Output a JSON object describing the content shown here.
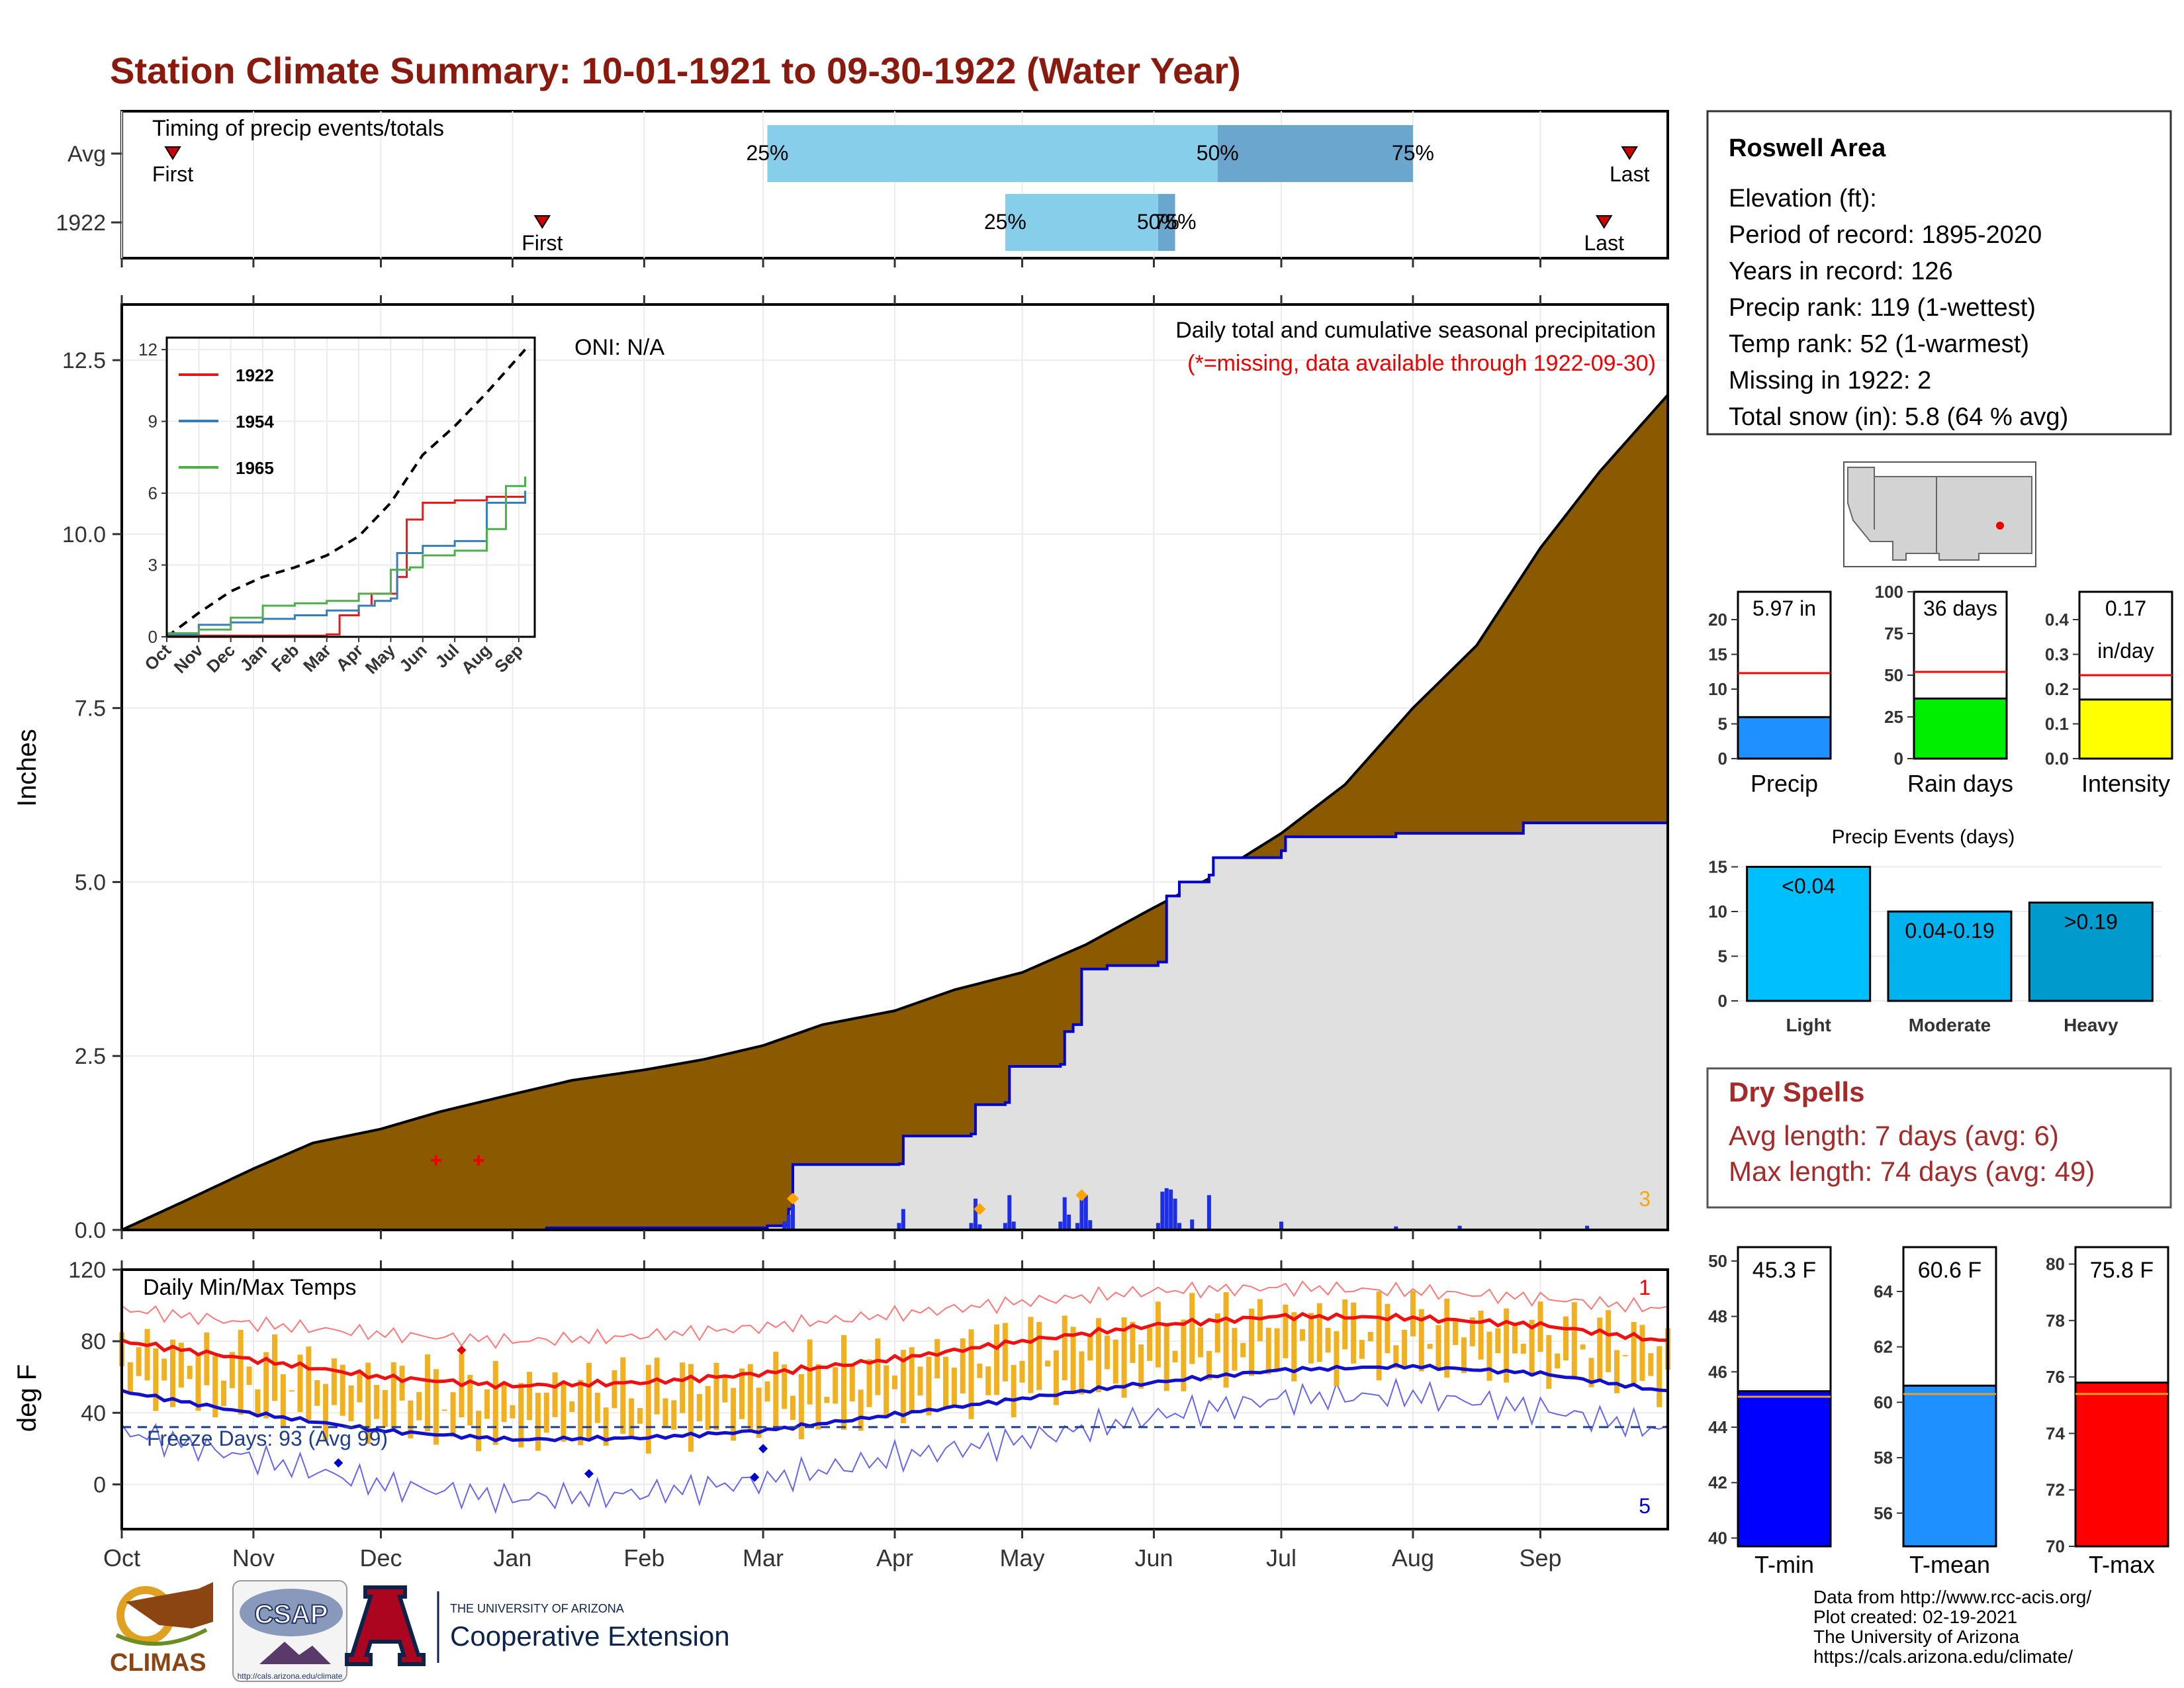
{
  "title": "Station Climate Summary: 10-01-1921 to 09-30-1922 (Water Year)",
  "colors": {
    "title": "#8B1A0E",
    "cum_avg_fill": "#8B5A00",
    "cum_year_fill": "#E0E0E0",
    "cum_year_line": "#0000CC",
    "daily_bar": "#1E2EE6",
    "temp_bar": "#F0B020",
    "tmax_avg": "#EE1111",
    "tmin_avg": "#1111CC",
    "light_blue": "#87CEEB",
    "steel_blue": "#6AA6CD",
    "missing": "#EE0000",
    "onset": "#FFA500"
  },
  "timing": {
    "panel_title": "Timing of precip events/totals",
    "rows": [
      "Avg",
      "1922"
    ],
    "avg": {
      "first": "First",
      "last": "Last",
      "p25": "25%",
      "p50": "50%",
      "p75": "75%",
      "first_day": 12,
      "p25_day": 152,
      "p50_day": 258,
      "p75_day": 304,
      "last_day": 355
    },
    "year": {
      "first": "First",
      "last": "Last",
      "p25": "25%",
      "p50": "50%",
      "p75": "75%",
      "first_day": 99,
      "p25_day": 208,
      "p50_day": 244,
      "p75_day": 248,
      "last_day": 349
    }
  },
  "precip_panel": {
    "ylabel": "Inches",
    "oni": "ONI: N/A",
    "caption": "Daily total and cumulative seasonal precipitation",
    "missing_note": "(*=missing, data available through 1922-09-30)",
    "yticks": [
      "0.0",
      "2.5",
      "5.0",
      "7.5",
      "10.0",
      "12.5"
    ],
    "corner_count": "3"
  },
  "inset": {
    "yticks": [
      "0",
      "3",
      "6",
      "9",
      "12"
    ],
    "months": [
      "Oct",
      "Nov",
      "Dec",
      "Jan",
      "Feb",
      "Mar",
      "Apr",
      "May",
      "Jun",
      "Jul",
      "Aug",
      "Sep"
    ],
    "legend": [
      {
        "name": "1922",
        "color": "#E41A1C"
      },
      {
        "name": "1954",
        "color": "#377EB8"
      },
      {
        "name": "1965",
        "color": "#4DAF4A"
      }
    ]
  },
  "temp_panel": {
    "ylabel": "deg F",
    "title": "Daily Min/Max Temps",
    "freeze": "Freeze Days: 93 (Avg 99)",
    "yticks": [
      "0",
      "40",
      "80",
      "120"
    ],
    "corner_top": "1",
    "corner_bottom": "5"
  },
  "x_months": [
    "Oct",
    "Nov",
    "Dec",
    "Jan",
    "Feb",
    "Mar",
    "Apr",
    "May",
    "Jun",
    "Jul",
    "Aug",
    "Sep"
  ],
  "station": {
    "name": "Roswell Area",
    "lines": [
      "Elevation (ft):",
      "Period of record: 1895-2020",
      "Years in record: 126",
      "Precip rank: 119 (1-wettest)",
      "Temp rank: 52 (1-warmest)",
      "Missing in 1922: 2",
      "Total snow (in): 5.8 (64 % avg)"
    ]
  },
  "mini_bars": [
    {
      "label": "Precip",
      "value_text": "5.97 in",
      "value": 5.97,
      "avg": 12.3,
      "max": 24,
      "color": "#1E90FF",
      "yticks": [
        "0",
        "5",
        "10",
        "15",
        "20"
      ],
      "tickvals": [
        0,
        5,
        10,
        15,
        20
      ]
    },
    {
      "label": "Rain days",
      "value_text": "36 days",
      "value": 36,
      "avg": 52,
      "max": 100,
      "color": "#00EE00",
      "yticks": [
        "0",
        "25",
        "50",
        "75",
        "100"
      ],
      "tickvals": [
        0,
        25,
        50,
        75,
        100
      ]
    },
    {
      "label": "Intensity",
      "value_text": "0.17",
      "value_text2": "in/day",
      "value": 0.17,
      "avg": 0.24,
      "max": 0.48,
      "color": "#FFFF00",
      "yticks": [
        "0.0",
        "0.1",
        "0.2",
        "0.3",
        "0.4"
      ],
      "tickvals": [
        0,
        0.1,
        0.2,
        0.3,
        0.4
      ]
    }
  ],
  "events": {
    "title": "Precip Events (days)",
    "yticks": [
      "0",
      "5",
      "10",
      "15"
    ],
    "bars": [
      {
        "cat": "Light",
        "label": "<0.04",
        "value": 15,
        "color": "#00BFFF"
      },
      {
        "cat": "Moderate",
        "label": "0.04-0.19",
        "value": 10,
        "color": "#00B2EE"
      },
      {
        "cat": "Heavy",
        "label": ">0.19",
        "value": 11,
        "color": "#009ACD"
      }
    ]
  },
  "dry_spells": {
    "title": "Dry Spells",
    "avg": "Avg length: 7 days (avg: 6)",
    "max": "Max length: 74 days (avg: 49)"
  },
  "temp_bars": [
    {
      "label": "T-min",
      "value_text": "45.3 F",
      "value": 45.3,
      "avg": 45.1,
      "min": 39.7,
      "max": 50.5,
      "color": "#0000FF",
      "yticks": [
        "40",
        "42",
        "44",
        "46",
        "48",
        "50"
      ],
      "tickvals": [
        40,
        42,
        44,
        46,
        48,
        50
      ]
    },
    {
      "label": "T-mean",
      "value_text": "60.6 F",
      "value": 60.6,
      "avg": 60.3,
      "min": 54.8,
      "max": 65.6,
      "color": "#1E90FF",
      "yticks": [
        "56",
        "58",
        "60",
        "62",
        "64"
      ],
      "tickvals": [
        56,
        58,
        60,
        62,
        64
      ]
    },
    {
      "label": "T-max",
      "value_text": "75.8 F",
      "value": 75.8,
      "avg": 75.4,
      "min": 70,
      "max": 80.6,
      "color": "#FF0000",
      "yticks": [
        "70",
        "72",
        "74",
        "76",
        "78",
        "80"
      ],
      "tickvals": [
        70,
        72,
        74,
        76,
        78,
        80
      ]
    }
  ],
  "footer": {
    "credits": [
      "Data from http://www.rcc-acis.org/",
      "Plot created: 02-19-2021",
      "The University of Arizona",
      "https://cals.arizona.edu/climate/"
    ],
    "climas": "CLIMAS",
    "csap": "CSAP",
    "csap_url": "http://cals.arizona.edu/climate",
    "ua_small": "THE UNIVERSITY OF ARIZONA",
    "ua_big": "Cooperative Extension"
  },
  "chart_data": [
    {
      "type": "area",
      "title": "Daily total and cumulative seasonal precipitation",
      "ylabel": "Inches",
      "ylim": [
        0,
        13.3
      ],
      "x_unit": "day of water year (Oct 1 = 0)",
      "series": [
        {
          "name": "Avg cumulative",
          "x": [
            0,
            15,
            31,
            45,
            61,
            75,
            92,
            106,
            123,
            137,
            151,
            165,
            182,
            196,
            212,
            227,
            242,
            256,
            273,
            288,
            304,
            319,
            334,
            348,
            364
          ],
          "y": [
            0.0,
            0.42,
            0.88,
            1.25,
            1.45,
            1.7,
            1.95,
            2.15,
            2.3,
            2.45,
            2.65,
            2.95,
            3.15,
            3.45,
            3.7,
            4.1,
            4.6,
            5.05,
            5.7,
            6.4,
            7.5,
            8.4,
            9.8,
            10.9,
            12.0
          ]
        },
        {
          "name": "1922 cumulative",
          "x": [
            0,
            100,
            152,
            157,
            158,
            183,
            184,
            200,
            201,
            208,
            209,
            221,
            222,
            224,
            226,
            232,
            244,
            246,
            249,
            256,
            257,
            273,
            274,
            300,
            330,
            364
          ],
          "y": [
            0.0,
            0.03,
            0.06,
            0.3,
            0.94,
            0.95,
            1.35,
            1.38,
            1.8,
            1.83,
            2.35,
            2.38,
            2.85,
            2.95,
            3.75,
            3.8,
            3.85,
            4.8,
            5.0,
            5.1,
            5.35,
            5.45,
            5.65,
            5.7,
            5.85,
            5.97
          ]
        },
        {
          "name": "1922 daily",
          "x": [
            101,
            156,
            157,
            158,
            183,
            184,
            200,
            201,
            202,
            208,
            209,
            210,
            221,
            222,
            223,
            225,
            226,
            227,
            228,
            244,
            245,
            246,
            247,
            248,
            249,
            252,
            256,
            273,
            300,
            315,
            345
          ],
          "y": [
            0.02,
            0.12,
            0.22,
            0.36,
            0.1,
            0.3,
            0.1,
            0.45,
            0.08,
            0.1,
            0.5,
            0.12,
            0.12,
            0.47,
            0.22,
            0.1,
            0.55,
            0.5,
            0.14,
            0.1,
            0.55,
            0.6,
            0.58,
            0.45,
            0.1,
            0.15,
            0.5,
            0.12,
            0.05,
            0.06,
            0.06
          ]
        },
        {
          "name": "missing",
          "x": [
            74,
            84
          ],
          "y": [
            1.0,
            1.0
          ]
        }
      ]
    },
    {
      "type": "line",
      "title": "",
      "ylim": [
        0,
        12
      ],
      "x_unit": "month index (Oct = 0)",
      "series": [
        {
          "name": "",
          "x": [
            0,
            1,
            2,
            3,
            4,
            5,
            6,
            7,
            8,
            9,
            10,
            11.2
          ],
          "y": [
            0,
            1.0,
            1.9,
            2.5,
            2.9,
            3.4,
            4.2,
            5.6,
            7.6,
            8.8,
            10.2,
            12.0
          ]
        },
        {
          "name": "1922",
          "x": [
            0,
            5,
            5.4,
            6,
            6.4,
            7.2,
            7.5,
            8,
            9,
            10,
            11.2
          ],
          "y": [
            0.05,
            0.1,
            0.9,
            1.3,
            1.8,
            2.5,
            4.9,
            5.6,
            5.7,
            5.85,
            6.0
          ]
        },
        {
          "name": "1954",
          "x": [
            0,
            1,
            2,
            3,
            4,
            5,
            6,
            6.5,
            7,
            7.2,
            8,
            9,
            10,
            11.2
          ],
          "y": [
            0.1,
            0.5,
            0.6,
            0.75,
            0.9,
            1.1,
            1.3,
            1.5,
            1.6,
            3.5,
            3.8,
            4.0,
            5.6,
            6.1
          ]
        },
        {
          "name": "1965",
          "x": [
            0,
            1,
            2,
            3,
            4,
            5,
            6,
            7,
            7.6,
            8,
            9,
            10,
            10.6,
            11.2
          ],
          "y": [
            0.15,
            0.3,
            0.8,
            1.3,
            1.4,
            1.5,
            1.8,
            2.8,
            2.9,
            3.4,
            3.6,
            4.5,
            6.3,
            6.7
          ]
        }
      ]
    },
    {
      "type": "line",
      "title": "Daily Min/Max Temps",
      "ylabel": "deg F",
      "ylim": [
        -25,
        120
      ],
      "x_unit": "day of water year (Oct 1 = 0)",
      "series": [
        {
          "name": "Avg Tmax",
          "x": [
            0,
            30,
            61,
            92,
            123,
            151,
            182,
            212,
            243,
            273,
            304,
            334,
            364
          ],
          "y": [
            80,
            70,
            60,
            55,
            57,
            62,
            70,
            80,
            89,
            94,
            93,
            89,
            80
          ]
        },
        {
          "name": "Avg Tmin",
          "x": [
            0,
            30,
            61,
            92,
            123,
            151,
            182,
            212,
            243,
            273,
            304,
            334,
            364
          ],
          "y": [
            52,
            40,
            30,
            25,
            26,
            30,
            39,
            48,
            57,
            64,
            66,
            62,
            52
          ]
        },
        {
          "name": "Record high",
          "x": [
            0,
            30,
            61,
            92,
            123,
            151,
            182,
            212,
            243,
            273,
            304,
            334,
            364
          ],
          "y": [
            98,
            90,
            84,
            80,
            83,
            88,
            95,
            102,
            108,
            110,
            108,
            104,
            98
          ]
        },
        {
          "name": "Record low",
          "x": [
            0,
            30,
            61,
            92,
            123,
            151,
            182,
            212,
            243,
            273,
            304,
            334,
            364
          ],
          "y": [
            30,
            15,
            0,
            -8,
            -5,
            2,
            15,
            25,
            38,
            48,
            50,
            42,
            30
          ]
        },
        {
          "name": "Freeze threshold",
          "x": [
            0,
            364
          ],
          "y": [
            32,
            32
          ]
        }
      ]
    },
    {
      "type": "bar",
      "title": "Precip Events (days)",
      "categories": [
        "Light",
        "Moderate",
        "Heavy"
      ],
      "values": [
        15,
        10,
        11
      ],
      "ylim": [
        0,
        16
      ]
    },
    {
      "type": "bar",
      "categories": [
        "Precip",
        "Rain days",
        "Intensity"
      ],
      "series": [
        {
          "name": "",
          "values": [
            5.97,
            36,
            0.17
          ]
        },
        {
          "name": "",
          "values": [
            12.3,
            52,
            0.24
          ]
        }
      ]
    },
    {
      "type": "bar",
      "categories": [
        "T-min",
        "T-mean",
        "T-max"
      ],
      "series": [
        {
          "name": "",
          "values": [
            45.3,
            60.6,
            75.8
          ]
        },
        {
          "name": "",
          "values": [
            45.1,
            60.3,
            75.4
          ]
        }
      ]
    }
  ]
}
